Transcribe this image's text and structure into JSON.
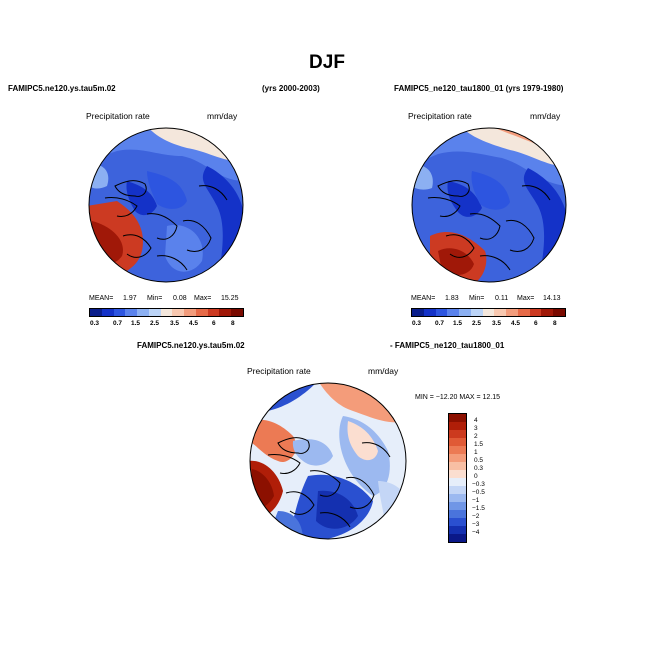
{
  "title": "DJF",
  "panels": [
    {
      "header_left": "FAMIPC5.ne120.ys.tau5m.02",
      "header_right": "(yrs 2000-2003)",
      "variable": "Precipitation rate",
      "units": "mm/day",
      "stats": {
        "mean_label": "MEAN=",
        "mean": "1.97",
        "min_label": "Min=",
        "min": "0.08",
        "max_label": "Max=",
        "max": "15.25"
      }
    },
    {
      "header_left": "FAMIPC5_ne120_tau1800_01 (yrs 1979-1980)",
      "variable": "Precipitation rate",
      "units": "mm/day",
      "stats": {
        "mean_label": "MEAN=",
        "mean": "1.83",
        "min_label": "Min=",
        "min": "0.11",
        "max_label": "Max=",
        "max": "14.13"
      }
    },
    {
      "header_left": "FAMIPC5.ne120.ys.tau5m.02",
      "header_right": "- FAMIPC5_ne120_tau1800_01",
      "variable": "Precipitation rate",
      "units": "mm/day",
      "stats_line": "MIN = −12.20  MAX =  12.15"
    }
  ],
  "colorbar_abs": {
    "labels": [
      "0.3",
      "0.7",
      "1.5",
      "2.5",
      "3.5",
      "4.5",
      "6",
      "8"
    ],
    "colors": [
      "#0a1e8c",
      "#1432c8",
      "#2d55e0",
      "#5a82ec",
      "#8cb0f2",
      "#bcd4f7",
      "#f4e7dc",
      "#f8c8b0",
      "#f29c7c",
      "#e66a48",
      "#cc3a22",
      "#a01808",
      "#7a0a00"
    ]
  },
  "colorbar_diff": {
    "labels": [
      "4",
      "3",
      "2",
      "1.5",
      "1",
      "0.5",
      "0.3",
      "0",
      "−0.3",
      "−0.5",
      "−1",
      "−1.5",
      "−2",
      "−3",
      "−4"
    ],
    "colors": [
      "#8c1000",
      "#b01e08",
      "#cc3a1e",
      "#e05a36",
      "#ec7a54",
      "#f49c7a",
      "#f8bfa4",
      "#fbded0",
      "#e6eefa",
      "#c4d6f6",
      "#9cb9f0",
      "#7096e6",
      "#4a74dc",
      "#2a50d0",
      "#1430b0",
      "#0a1888"
    ]
  }
}
